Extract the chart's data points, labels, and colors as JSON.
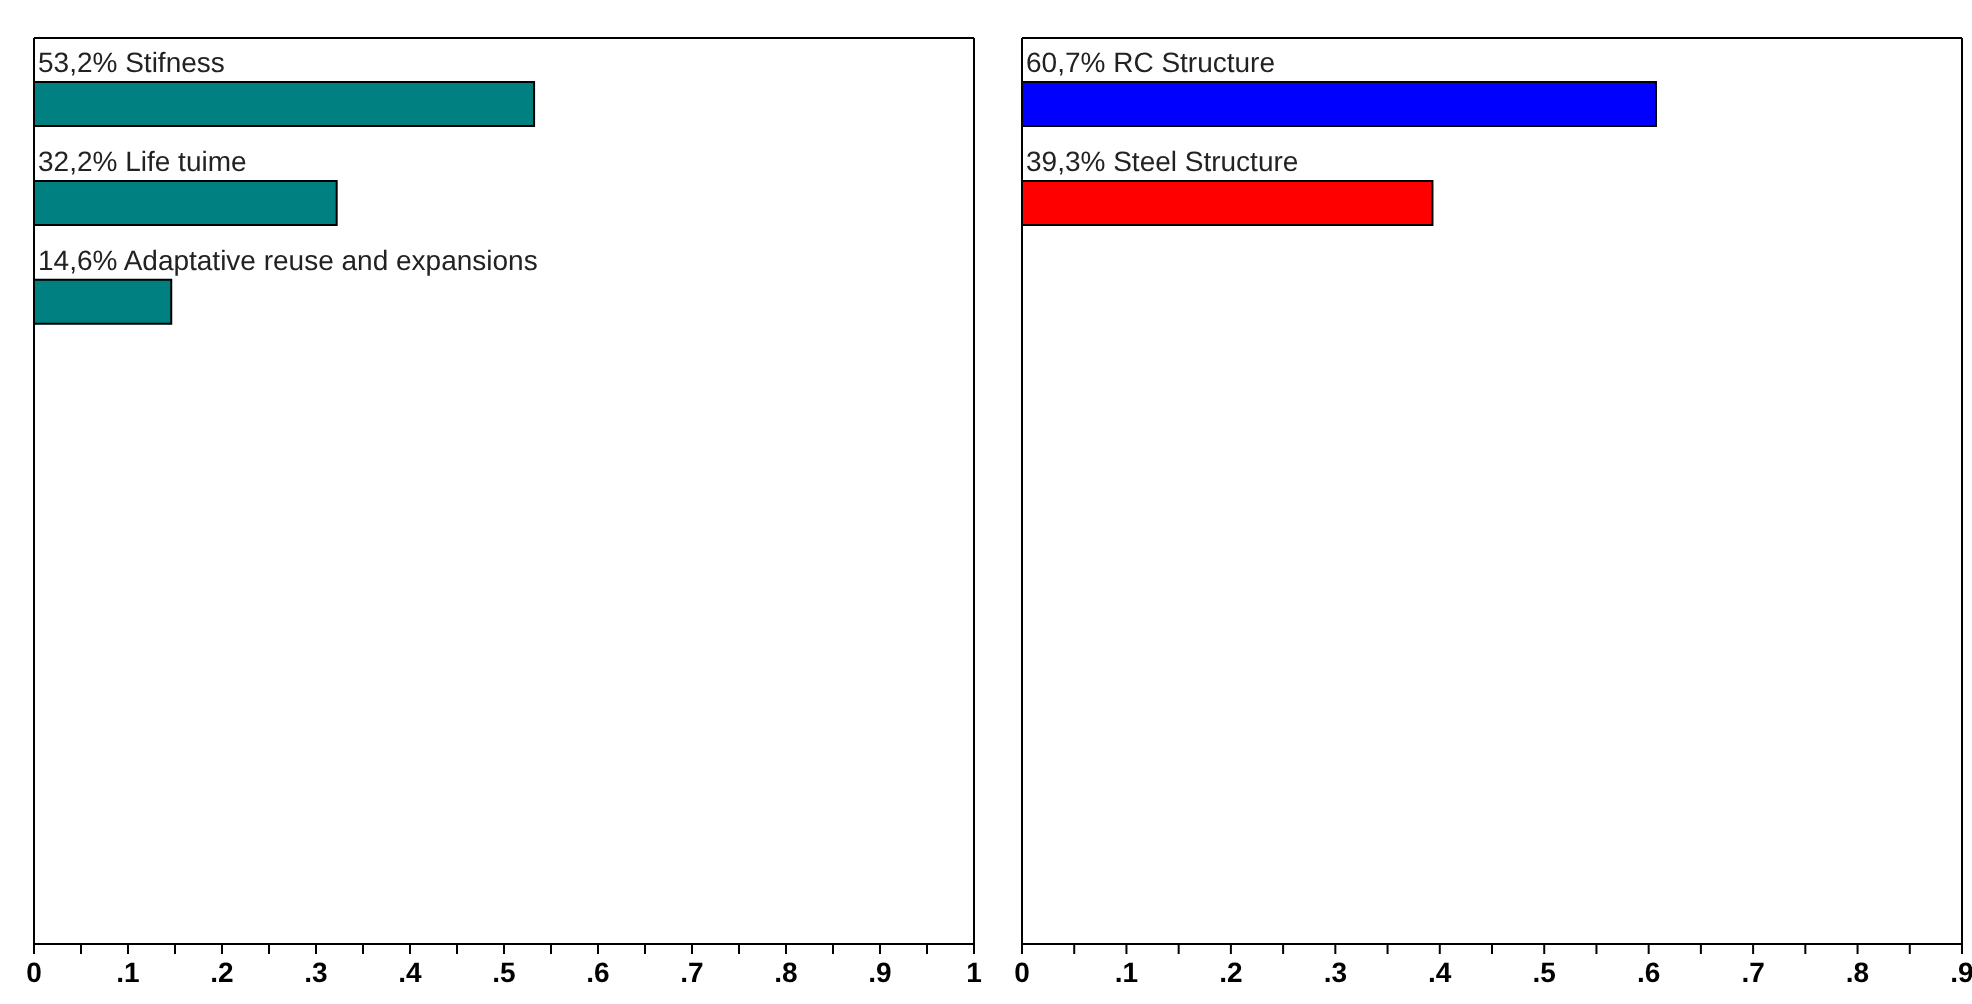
{
  "chart_data": [
    {
      "type": "bar",
      "orientation": "horizontal",
      "categories": [
        "Stifness",
        "Life tuime",
        "Adaptative reuse and expansions",
        null,
        null,
        null,
        null,
        null,
        null
      ],
      "values": [
        0.532,
        0.322,
        0.146,
        null,
        null,
        null,
        null,
        null,
        null
      ],
      "value_labels": [
        "53,2%",
        "32,2%",
        "14,6%",
        null,
        null,
        null,
        null,
        null,
        null
      ],
      "color": "#008080",
      "xlim": [
        0,
        1
      ],
      "xticks": [
        {
          "value": 0,
          "label": "0"
        },
        {
          "value": 0.05,
          "label": null
        },
        {
          "value": 0.1,
          "label": ".1"
        },
        {
          "value": 0.15,
          "label": null
        },
        {
          "value": 0.2,
          "label": ".2"
        },
        {
          "value": 0.25,
          "label": null
        },
        {
          "value": 0.3,
          "label": ".3"
        },
        {
          "value": 0.35,
          "label": null
        },
        {
          "value": 0.4,
          "label": ".4"
        },
        {
          "value": 0.45,
          "label": null
        },
        {
          "value": 0.5,
          "label": ".5"
        },
        {
          "value": 0.55,
          "label": null
        },
        {
          "value": 0.6,
          "label": ".6"
        },
        {
          "value": 0.65,
          "label": null
        },
        {
          "value": 0.7,
          "label": ".7"
        },
        {
          "value": 0.75,
          "label": null
        },
        {
          "value": 0.8,
          "label": ".8"
        },
        {
          "value": 0.85,
          "label": null
        },
        {
          "value": 0.9,
          "label": ".9"
        },
        {
          "value": 0.95,
          "label": null
        },
        {
          "value": 1,
          "label": "1"
        }
      ],
      "grid": false,
      "legend": false
    },
    {
      "type": "bar",
      "orientation": "horizontal",
      "categories": [
        "RC Structure",
        "Steel Structure",
        null,
        null,
        null,
        null,
        null,
        null,
        null
      ],
      "values": [
        0.607,
        0.393,
        null,
        null,
        null,
        null,
        null,
        null,
        null
      ],
      "value_labels": [
        "60,7%",
        "39,3%",
        null,
        null,
        null,
        null,
        null,
        null,
        null
      ],
      "colors": [
        "#0000ff",
        "#ff0000",
        null,
        null,
        null,
        null,
        null,
        null,
        null
      ],
      "xlim": [
        0,
        0.9
      ],
      "xticks": [
        {
          "value": 0,
          "label": "0"
        },
        {
          "value": 0.05,
          "label": null
        },
        {
          "value": 0.1,
          "label": ".1"
        },
        {
          "value": 0.15,
          "label": null
        },
        {
          "value": 0.2,
          "label": ".2"
        },
        {
          "value": 0.25,
          "label": null
        },
        {
          "value": 0.3,
          "label": ".3"
        },
        {
          "value": 0.35,
          "label": null
        },
        {
          "value": 0.4,
          "label": ".4"
        },
        {
          "value": 0.45,
          "label": null
        },
        {
          "value": 0.5,
          "label": ".5"
        },
        {
          "value": 0.55,
          "label": null
        },
        {
          "value": 0.6,
          "label": ".6"
        },
        {
          "value": 0.65,
          "label": null
        },
        {
          "value": 0.7,
          "label": ".7"
        },
        {
          "value": 0.75,
          "label": null
        },
        {
          "value": 0.8,
          "label": ".8"
        },
        {
          "value": 0.85,
          "label": null
        },
        {
          "value": 0.9,
          "label": ".9"
        }
      ],
      "grid": false,
      "legend": false
    }
  ]
}
